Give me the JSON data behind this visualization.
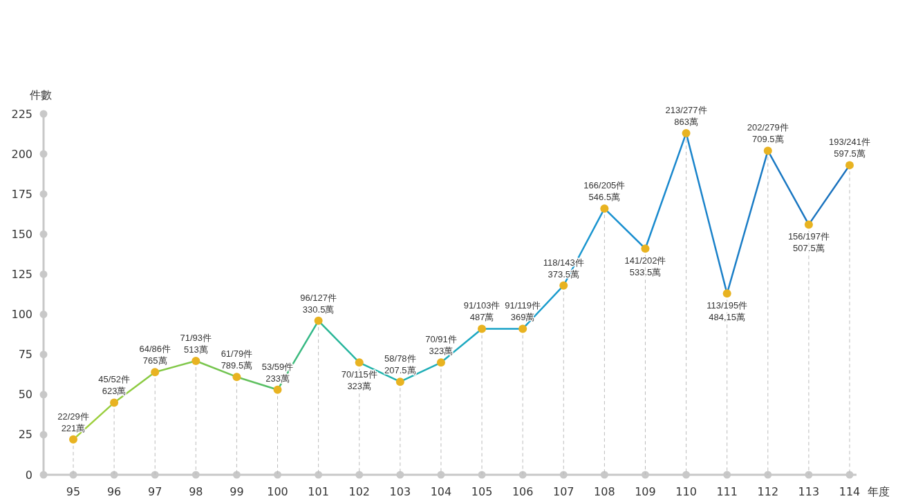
{
  "chart_data": {
    "type": "line",
    "ylabel": "件數",
    "xlabel": "年度",
    "categories": [
      "95",
      "96",
      "97",
      "98",
      "99",
      "100",
      "101",
      "102",
      "103",
      "104",
      "105",
      "106",
      "107",
      "108",
      "109",
      "110",
      "111",
      "112",
      "113",
      "114"
    ],
    "series": [
      {
        "color": "#e8b321",
        "colors": [
          "#a3d039",
          "#96cd3f",
          "#86c944",
          "#7cc64a",
          "#6cc253",
          "#4cbd6e",
          "#2db78f",
          "#22b4a5",
          "#20b0b0",
          "#1eacbb",
          "#1ba6c4",
          "#1a9fca",
          "#1a9ace",
          "#1a93d0",
          "#198ccf",
          "#1985cc",
          "#1a7fc8",
          "#1a7ac4",
          "#1a75c0",
          "#1a70bc"
        ],
        "values": [
          22,
          45,
          64,
          71,
          61,
          53,
          96,
          70,
          58,
          70,
          91,
          91,
          118,
          166,
          141,
          213,
          113,
          202,
          156,
          193
        ],
        "value_labels": [
          "22/29件\n221萬",
          "45/52件\n623萬",
          "64/86件\n765萬",
          "71/93件\n513萬",
          "61/79件\n789.5萬",
          "53/59件\n233萬",
          "96/127件\n330.5萬",
          "70/115件\n323萬",
          "58/78件\n207.5萬",
          "70/91件\n323萬",
          "91/103件\n487萬",
          "91/119件\n369萬",
          "118/143件\n373.5萬",
          "166/205件\n546.5萬",
          "141/202件\n533.5萬",
          "213/277件\n863萬",
          "113/195件\n484,15萬",
          "202/279件\n709.5萬",
          "156/197件\n507.5萬",
          "193/241件\n597.5萬"
        ]
      }
    ],
    "ylim": [
      0,
      225
    ],
    "yticks": [
      0,
      25,
      50,
      75,
      100,
      125,
      150,
      175,
      200,
      225
    ],
    "grid": "x",
    "marker": "circle",
    "line_style": "solid"
  }
}
